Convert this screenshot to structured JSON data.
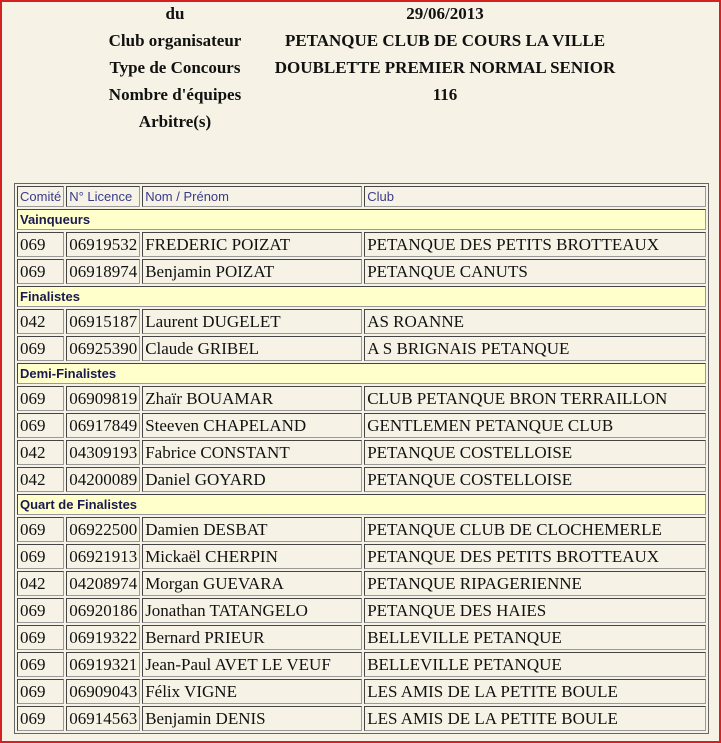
{
  "info": [
    {
      "label": "du",
      "value": "29/06/2013"
    },
    {
      "label": "Club organisateur",
      "value": "PETANQUE CLUB DE COURS LA VILLE"
    },
    {
      "label": "Type de Concours",
      "value": "DOUBLETTE PREMIER NORMAL SENIOR"
    },
    {
      "label": "Nombre d'équipes",
      "value": "116"
    },
    {
      "label": "Arbitre(s)",
      "value": ""
    }
  ],
  "table": {
    "headers": [
      "Comité",
      "N° Licence",
      "Nom / Prénom",
      "Club"
    ],
    "sections": [
      {
        "title": "Vainqueurs",
        "rows": [
          [
            "069",
            "06919532",
            "FREDERIC POIZAT",
            "PETANQUE DES PETITS BROTTEAUX"
          ],
          [
            "069",
            "06918974",
            "Benjamin POIZAT",
            "PETANQUE CANUTS"
          ]
        ]
      },
      {
        "title": "Finalistes",
        "rows": [
          [
            "042",
            "06915187",
            "Laurent DUGELET",
            "AS ROANNE"
          ],
          [
            "069",
            "06925390",
            "Claude GRIBEL",
            "A S BRIGNAIS PETANQUE"
          ]
        ]
      },
      {
        "title": "Demi-Finalistes",
        "rows": [
          [
            "069",
            "06909819",
            "Zhaïr BOUAMAR",
            "CLUB PETANQUE BRON TERRAILLON"
          ],
          [
            "069",
            "06917849",
            "Steeven CHAPELAND",
            "GENTLEMEN PETANQUE CLUB"
          ],
          [
            "042",
            "04309193",
            "Fabrice CONSTANT",
            "PETANQUE COSTELLOISE"
          ],
          [
            "042",
            "04200089",
            "Daniel GOYARD",
            "PETANQUE COSTELLOISE"
          ]
        ]
      },
      {
        "title": "Quart de Finalistes",
        "rows": [
          [
            "069",
            "06922500",
            "Damien DESBAT",
            "PETANQUE CLUB DE CLOCHEMERLE"
          ],
          [
            "069",
            "06921913",
            "Mickaël CHERPIN",
            "PETANQUE DES PETITS BROTTEAUX"
          ],
          [
            "042",
            "04208974",
            "Morgan GUEVARA",
            "PETANQUE RIPAGERIENNE"
          ],
          [
            "069",
            "06920186",
            "Jonathan TATANGELO",
            "PETANQUE DES HAIES"
          ],
          [
            "069",
            "06919322",
            "Bernard PRIEUR",
            "BELLEVILLE PETANQUE"
          ],
          [
            "069",
            "06919321",
            "Jean-Paul AVET LE VEUF",
            "BELLEVILLE PETANQUE"
          ],
          [
            "069",
            "06909043",
            "Félix VIGNE",
            "LES AMIS DE LA PETITE BOULE"
          ],
          [
            "069",
            "06914563",
            "Benjamin DENIS",
            "LES AMIS DE LA PETITE BOULE"
          ]
        ]
      }
    ]
  },
  "colors": {
    "frame": "#d42020",
    "background": "#f6f3e6",
    "section_bg": "#ffffcc",
    "header_text": "#3a3a8c"
  }
}
